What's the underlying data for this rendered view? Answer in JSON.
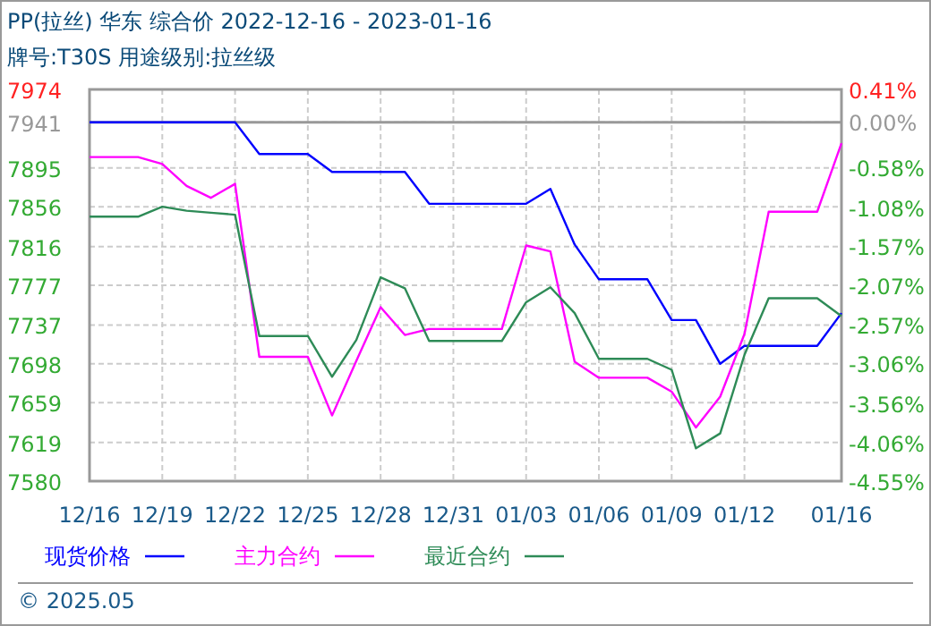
{
  "chart_data": {
    "type": "line",
    "title": "PP(拉丝) 华东 综合价 2022-12-16 - 2023-01-16",
    "subtitle": "牌号:T30S 用途级别:拉丝级",
    "x": [
      "2022-12-16",
      "2022-12-17",
      "2022-12-18",
      "2022-12-19",
      "2022-12-20",
      "2022-12-21",
      "2022-12-22",
      "2022-12-23",
      "2022-12-24",
      "2022-12-25",
      "2022-12-26",
      "2022-12-27",
      "2022-12-28",
      "2022-12-29",
      "2022-12-30",
      "2022-12-31",
      "2023-01-01",
      "2023-01-02",
      "2023-01-03",
      "2023-01-04",
      "2023-01-05",
      "2023-01-06",
      "2023-01-07",
      "2023-01-08",
      "2023-01-09",
      "2023-01-10",
      "2023-01-11",
      "2023-01-12",
      "2023-01-13",
      "2023-01-14",
      "2023-01-15",
      "2023-01-16"
    ],
    "series": [
      {
        "name": "现货价格",
        "color": "#0000ff",
        "values": [
          7941,
          7941,
          7941,
          7941,
          7941,
          7941,
          7941,
          7909,
          7909,
          7909,
          7891,
          7891,
          7891,
          7891,
          7859,
          7859,
          7859,
          7859,
          7859,
          7874,
          7818,
          7783,
          7783,
          7783,
          7742,
          7742,
          7698,
          7716,
          7716,
          7716,
          7716,
          7749
        ]
      },
      {
        "name": "主力合约",
        "color": "#ff00ff",
        "values": [
          7906,
          7906,
          7906,
          7899,
          7877,
          7865,
          7879,
          7705,
          7705,
          7705,
          7646,
          7701,
          7755,
          7727,
          7733,
          7733,
          7733,
          7733,
          7817,
          7811,
          7700,
          7684,
          7684,
          7684,
          7670,
          7634,
          7665,
          7728,
          7851,
          7851,
          7851,
          7920
        ]
      },
      {
        "name": "最近合约",
        "color": "#2e8b57",
        "values": [
          7846,
          7846,
          7846,
          7856,
          7852,
          7850,
          7848,
          7726,
          7726,
          7726,
          7685,
          7722,
          7785,
          7774,
          7721,
          7721,
          7721,
          7721,
          7760,
          7775,
          7749,
          7703,
          7703,
          7703,
          7692,
          7613,
          7628,
          7707,
          7764,
          7764,
          7764,
          7746
        ]
      }
    ],
    "xlim": [
      "2022-12-16",
      "2023-01-16"
    ],
    "xticks": [
      {
        "value": "2022-12-16",
        "label": "12/16"
      },
      {
        "value": "2022-12-19",
        "label": "12/19"
      },
      {
        "value": "2022-12-22",
        "label": "12/22"
      },
      {
        "value": "2022-12-25",
        "label": "12/25"
      },
      {
        "value": "2022-12-28",
        "label": "12/28"
      },
      {
        "value": "2022-12-31",
        "label": "12/31"
      },
      {
        "value": "2023-01-03",
        "label": "01/03"
      },
      {
        "value": "2023-01-06",
        "label": "01/06"
      },
      {
        "value": "2023-01-09",
        "label": "01/09"
      },
      {
        "value": "2023-01-12",
        "label": "01/12"
      },
      {
        "value": "2023-01-16",
        "label": "01/16"
      }
    ],
    "ylim": [
      7580,
      7974
    ],
    "yticks": [
      7580,
      7619,
      7659,
      7698,
      7737,
      7777,
      7816,
      7856,
      7895,
      7941,
      7974
    ],
    "y2lim": [
      -4.55,
      0.41
    ],
    "y2ticks": [
      {
        "value": -4.55,
        "label": "-4.55%"
      },
      {
        "value": -4.06,
        "label": "-4.06%"
      },
      {
        "value": -3.56,
        "label": "-3.56%"
      },
      {
        "value": -3.06,
        "label": "-3.06%"
      },
      {
        "value": -2.57,
        "label": "-2.57%"
      },
      {
        "value": -2.07,
        "label": "-2.07%"
      },
      {
        "value": -1.57,
        "label": "-1.57%"
      },
      {
        "value": -1.08,
        "label": "-1.08%"
      },
      {
        "value": -0.58,
        "label": "-0.58%"
      },
      {
        "value": 0,
        "label": "0.00%"
      },
      {
        "value": 0.41,
        "label": "0.41%"
      }
    ],
    "ref_lines": [
      {
        "axis": "y",
        "value": 7941,
        "color": "#999999"
      }
    ],
    "annotations": [
      "© 2025.05"
    ],
    "grid": true,
    "legend": "bottom",
    "marker": "none",
    "line_style": "solid"
  }
}
